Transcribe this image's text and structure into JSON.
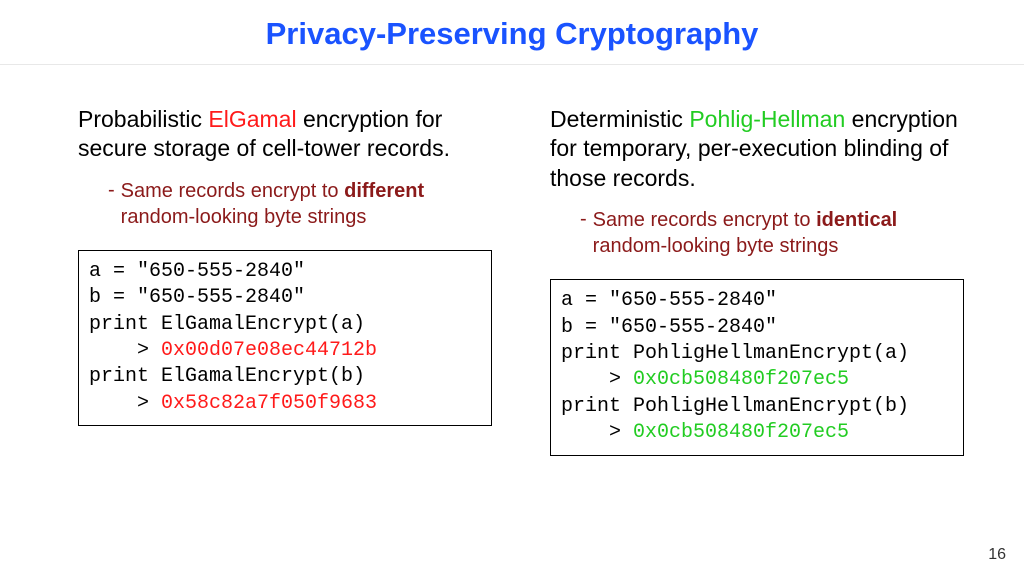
{
  "colors": {
    "title": "#1a53ff",
    "elgamal": "#ff1a1a",
    "pohlig": "#22cc22",
    "bullet": "#8b1a1a",
    "code_out_left": "#ff1a1a",
    "code_out_right": "#22cc22"
  },
  "title": "Privacy-Preserving Cryptography",
  "left": {
    "desc_pre": "Probabilistic ",
    "desc_hl": "ElGamal",
    "desc_post": " encryption for secure storage of cell-tower records.",
    "bullet_pre": "Same records encrypt to ",
    "bullet_bold": "different",
    "bullet_post": " random-looking byte strings",
    "code": {
      "l1": "a = \"650-555-2840\"",
      "l2": "b = \"650-555-2840\"",
      "l3": "print ElGamalEncrypt(a)",
      "l4_pre": "    > ",
      "l4_out": "0x00d07e08ec44712b",
      "l5": "print ElGamalEncrypt(b)",
      "l6_pre": "    > ",
      "l6_out": "0x58c82a7f050f9683"
    }
  },
  "right": {
    "desc_pre": "Deterministic ",
    "desc_hl": "Pohlig-Hellman",
    "desc_post": " encryption for temporary, per-execution blinding of those records.",
    "bullet_pre": "Same records encrypt to ",
    "bullet_bold": "identical",
    "bullet_post": " random-looking byte strings",
    "code": {
      "l1": "a = \"650-555-2840\"",
      "l2": "b = \"650-555-2840\"",
      "l3": "print PohligHellmanEncrypt(a)",
      "l4_pre": "    > ",
      "l4_out": "0x0cb508480f207ec5",
      "l5": "print PohligHellmanEncrypt(b)",
      "l6_pre": "    > ",
      "l6_out": "0x0cb508480f207ec5"
    }
  },
  "page_number": "16"
}
